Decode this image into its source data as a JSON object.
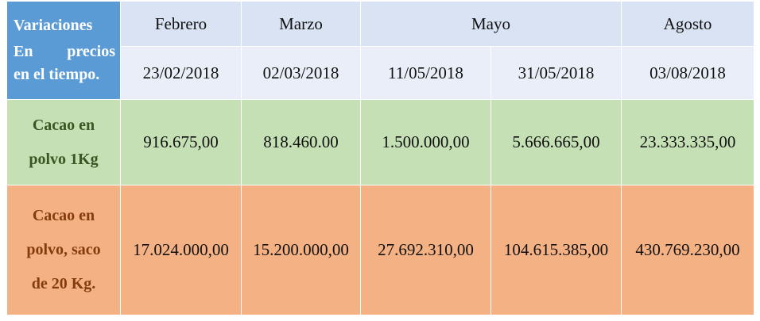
{
  "header": {
    "label_line1": "Variaciones",
    "label_line2_a": "En",
    "label_line2_b": "precios",
    "label_line3": "en el tiempo.",
    "months": [
      "Febrero",
      "Marzo",
      "Mayo",
      "Agosto"
    ],
    "dates": [
      "23/02/2018",
      "02/03/2018",
      "11/05/2018",
      "31/05/2018",
      "03/08/2018"
    ]
  },
  "rows": [
    {
      "label_lines": [
        "Cacao en",
        "polvo 1Kg"
      ],
      "values": [
        "916.675,00",
        "818.460.00",
        "1.500.000,00",
        "5.666.665,00",
        "23.333.335,00"
      ]
    },
    {
      "label_lines": [
        "Cacao en",
        "polvo, saco",
        "de 20 Kg."
      ],
      "values": [
        "17.024.000,00",
        "15.200.000,00",
        "27.692.310,00",
        "104.615.385,00",
        "430.769.230,00"
      ]
    }
  ],
  "colors": {
    "header_label_bg": "#5b9bd5",
    "month_bg": "#dae3f3",
    "date_bg": "#e9eef8",
    "row1_bg": "#c5e0b4",
    "row1_label_text": "#385723",
    "row2_bg": "#f4b183",
    "row2_label_text": "#843c0c"
  }
}
